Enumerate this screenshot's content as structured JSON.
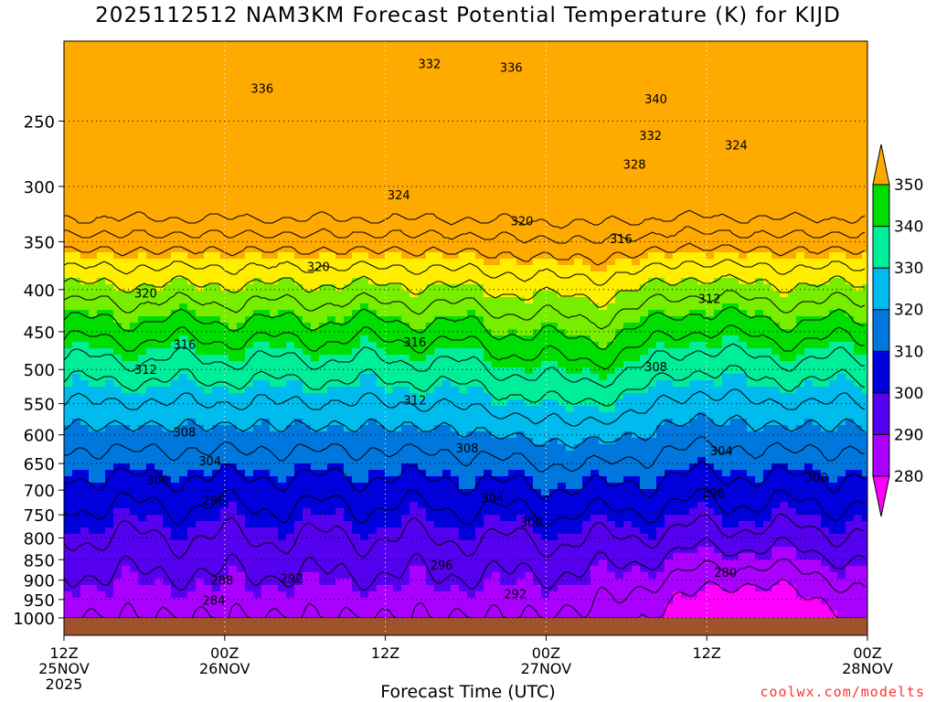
{
  "chart_data": {
    "type": "heatmap",
    "title": "2025112512 NAM3KM Forecast Potential Temperature (K) for KIJD",
    "xlabel": "Forecast Time (UTC)",
    "ylabel": "",
    "y_scale": "log-pressure",
    "ylim": [
      1000,
      200
    ],
    "y_ticks": [
      250,
      300,
      350,
      400,
      450,
      500,
      550,
      600,
      650,
      700,
      750,
      800,
      850,
      900,
      950,
      1000
    ],
    "x_range_hours": [
      0,
      60
    ],
    "x_ticks": [
      {
        "hour": 0,
        "time": "12Z",
        "date": "25NOV",
        "year": "2025"
      },
      {
        "hour": 12,
        "time": "00Z",
        "date": "26NOV",
        "year": ""
      },
      {
        "hour": 24,
        "time": "12Z",
        "date": "",
        "year": ""
      },
      {
        "hour": 36,
        "time": "00Z",
        "date": "27NOV",
        "year": ""
      },
      {
        "hour": 48,
        "time": "12Z",
        "date": "",
        "year": ""
      },
      {
        "hour": 60,
        "time": "00Z",
        "date": "28NOV",
        "year": ""
      }
    ],
    "colorbar": {
      "levels": [
        280,
        290,
        300,
        310,
        320,
        330,
        340,
        350
      ],
      "colors": [
        "#ff00ff",
        "#aa00ff",
        "#5500ee",
        "#0000dd",
        "#0077dd",
        "#00bbee",
        "#00ee99",
        "#00dd00",
        "#77ee00",
        "#ffee00",
        "#ffaa00"
      ]
    },
    "contour_interval": 4,
    "isentrope_labels": [
      {
        "value": 336,
        "hour": 14.8,
        "p": 228
      },
      {
        "value": 332,
        "hour": 27.3,
        "p": 213
      },
      {
        "value": 336,
        "hour": 33.4,
        "p": 215
      },
      {
        "value": 340,
        "hour": 44.2,
        "p": 235
      },
      {
        "value": 332,
        "hour": 43.8,
        "p": 260
      },
      {
        "value": 328,
        "hour": 42.6,
        "p": 282
      },
      {
        "value": 324,
        "hour": 50.2,
        "p": 267
      },
      {
        "value": 324,
        "hour": 25.0,
        "p": 307
      },
      {
        "value": 320,
        "hour": 34.2,
        "p": 330
      },
      {
        "value": 316,
        "hour": 41.6,
        "p": 347
      },
      {
        "value": 320,
        "hour": 19.0,
        "p": 375
      },
      {
        "value": 320,
        "hour": 6.1,
        "p": 404
      },
      {
        "value": 312,
        "hour": 48.2,
        "p": 410
      },
      {
        "value": 316,
        "hour": 9.0,
        "p": 466
      },
      {
        "value": 316,
        "hour": 26.2,
        "p": 463
      },
      {
        "value": 308,
        "hour": 44.2,
        "p": 496
      },
      {
        "value": 312,
        "hour": 6.1,
        "p": 500
      },
      {
        "value": 312,
        "hour": 26.2,
        "p": 544
      },
      {
        "value": 308,
        "hour": 9.0,
        "p": 595
      },
      {
        "value": 308,
        "hour": 30.1,
        "p": 622
      },
      {
        "value": 304,
        "hour": 49.1,
        "p": 627
      },
      {
        "value": 304,
        "hour": 10.9,
        "p": 645
      },
      {
        "value": 300,
        "hour": 56.2,
        "p": 675
      },
      {
        "value": 300,
        "hour": 7.0,
        "p": 680
      },
      {
        "value": 296,
        "hour": 48.5,
        "p": 705
      },
      {
        "value": 304,
        "hour": 32.0,
        "p": 715
      },
      {
        "value": 296,
        "hour": 11.2,
        "p": 720
      },
      {
        "value": 300,
        "hour": 34.9,
        "p": 765
      },
      {
        "value": 296,
        "hour": 28.2,
        "p": 862
      },
      {
        "value": 280,
        "hour": 49.4,
        "p": 880
      },
      {
        "value": 292,
        "hour": 17.0,
        "p": 895
      },
      {
        "value": 288,
        "hour": 11.8,
        "p": 900
      },
      {
        "value": 292,
        "hour": 33.7,
        "p": 935
      },
      {
        "value": 284,
        "hour": 11.2,
        "p": 952
      }
    ],
    "legend": "right colorbar"
  },
  "credit": "coolwx.com/modelts"
}
